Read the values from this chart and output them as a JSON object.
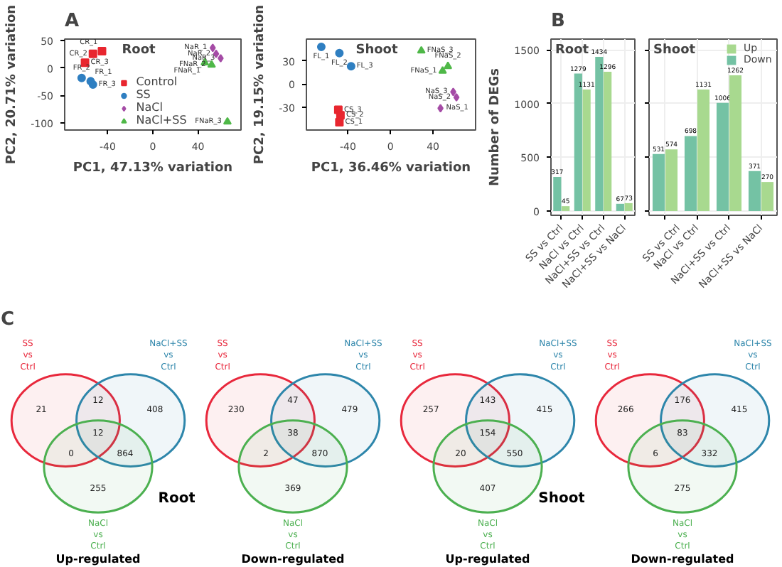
{
  "chart_data": [
    {
      "type": "scatter",
      "title": "Root",
      "xlabel": "PC1, 47.13% variation",
      "ylabel": "PC2, 20.71% variation",
      "xlim": [
        -78,
        78
      ],
      "ylim": [
        -113,
        53
      ],
      "xticks": [
        -40,
        0,
        40
      ],
      "yticks": [
        -100,
        -50,
        0,
        50
      ],
      "grid": false,
      "legend": "bottom",
      "annotations": [
        "A",
        {
          "text": "CR_1",
          "x": -45,
          "y": 31
        },
        {
          "text": "CR_2",
          "x": -53,
          "y": 26
        },
        {
          "text": "CR_3",
          "x": -60,
          "y": 10
        },
        {
          "text": "FR_1",
          "x": -55,
          "y": -24
        },
        {
          "text": "FR_2",
          "x": -63,
          "y": -18
        },
        {
          "text": "FR_3",
          "x": -53,
          "y": -30
        },
        {
          "text": "NaR_1",
          "x": 53,
          "y": 37
        },
        {
          "text": "NaR_2",
          "x": 56,
          "y": 26
        },
        {
          "text": "NaR_3",
          "x": 60,
          "y": 18
        },
        {
          "text": "FNaR_1",
          "x": 46,
          "y": 10
        },
        {
          "text": "FNaR_2",
          "x": 52,
          "y": 6
        },
        {
          "text": "FNaR_3",
          "x": 66,
          "y": -98
        }
      ],
      "series": [
        {
          "name": "Control",
          "color": "#e8262f",
          "marker": "square",
          "x": [
            -45,
            -53,
            -60
          ],
          "values": [
            31,
            26,
            10
          ]
        },
        {
          "name": "SS",
          "color": "#2f7fc1",
          "marker": "circle",
          "x": [
            -55,
            -63,
            -53
          ],
          "values": [
            -24,
            -18,
            -30
          ]
        },
        {
          "name": "NaCl",
          "color": "#a54ca6",
          "marker": "diamond",
          "x": [
            53,
            56,
            60
          ],
          "values": [
            37,
            26,
            18
          ]
        },
        {
          "name": "NaCl+SS",
          "color": "#4fb848",
          "marker": "triangle",
          "x": [
            46,
            52,
            66
          ],
          "values": [
            10,
            6,
            -98
          ]
        }
      ]
    },
    {
      "type": "scatter",
      "title": "Shoot",
      "xlabel": "PC1, 36.46% variation",
      "ylabel": "PC2, 19.15% variation",
      "xlim": [
        -79,
        80
      ],
      "ylim": [
        -59,
        58
      ],
      "xticks": [
        -40,
        0,
        40
      ],
      "yticks": [
        -30,
        0,
        30
      ],
      "grid": false,
      "annotations": [
        {
          "text": "FL_1",
          "x": -65,
          "y": 48
        },
        {
          "text": "FL_2",
          "x": -48,
          "y": 40
        },
        {
          "text": "FL_3",
          "x": -37,
          "y": 23
        },
        {
          "text": "CS_3",
          "x": -49,
          "y": -33
        },
        {
          "text": "CS_2",
          "x": -47,
          "y": -40
        },
        {
          "text": "CS_1",
          "x": -48,
          "y": -49
        },
        {
          "text": "NaS_3",
          "x": 59,
          "y": -10
        },
        {
          "text": "NaS_2",
          "x": 62,
          "y": -17
        },
        {
          "text": "NaS_1",
          "x": 47,
          "y": -31
        },
        {
          "text": "FNaS_3",
          "x": 29,
          "y": 43
        },
        {
          "text": "FNaS_2",
          "x": 54,
          "y": 23
        },
        {
          "text": "FNaS_1",
          "x": 49,
          "y": 17
        }
      ],
      "series": [
        {
          "color": "#e8262f",
          "marker": "square",
          "x": [
            -49,
            -47,
            -48
          ],
          "values": [
            -33,
            -40,
            -49
          ]
        },
        {
          "color": "#2f7fc1",
          "marker": "circle",
          "x": [
            -65,
            -48,
            -37
          ],
          "values": [
            48,
            40,
            23
          ]
        },
        {
          "color": "#a54ca6",
          "marker": "diamond",
          "x": [
            59,
            62,
            47
          ],
          "values": [
            -10,
            -17,
            -31
          ]
        },
        {
          "color": "#4fb848",
          "marker": "triangle",
          "x": [
            29,
            54,
            49
          ],
          "values": [
            43,
            23,
            17
          ]
        }
      ]
    },
    {
      "type": "bar",
      "title": "Root",
      "ylabel": "Number of DEGs",
      "ylim": [
        -40,
        1600
      ],
      "yticks": [
        0,
        500,
        1000,
        1500
      ],
      "grid": true,
      "data_labels": true,
      "annotations": [
        "B"
      ],
      "categories": [
        "SS vs Ctrl",
        "NaCl vs Ctrl",
        "NaCl+SS vs Ctrl",
        "NaCl+SS vs NaCl"
      ],
      "series": [
        {
          "color": "#74c2a4",
          "values": [
            317,
            1279,
            1434,
            67
          ]
        },
        {
          "color": "#a8d98f",
          "values": [
            45,
            1131,
            1296,
            73
          ]
        }
      ]
    },
    {
      "type": "bar",
      "title": "Shoot",
      "ylim": [
        -40,
        1600
      ],
      "yticks": [
        0,
        500,
        1000,
        1500
      ],
      "grid": true,
      "data_labels": true,
      "legend": "top right",
      "tick_labels": "x",
      "categories": [
        "SS vs Ctrl",
        "NaCl vs Ctrl",
        "NaCl+SS vs Ctrl",
        "NaCl+SS vs NaCl"
      ],
      "series": [
        {
          "name": "Down",
          "color": "#74c2a4",
          "values": [
            531,
            698,
            1006,
            371
          ]
        },
        {
          "name": "Up",
          "color": "#a8d98f",
          "values": [
            574,
            1131,
            1262,
            270
          ]
        }
      ]
    },
    {
      "type": "other",
      "title": "Root",
      "subtitle": "Up-regulated",
      "annotations": [
        "C",
        "21",
        "12",
        "408",
        "12",
        "0",
        "864",
        "255"
      ],
      "series": [
        {
          "name": "SS\nvs\nCtrl",
          "color": "#e8283c"
        },
        {
          "name": "NaCl+SS\nvs\nCtrl",
          "color": "#2e86ab"
        },
        {
          "name": "NaCl\nvs\nCtrl",
          "color": "#4cb050"
        }
      ],
      "legend": false
    },
    {
      "type": "other",
      "subtitle": "Down-regulated",
      "annotations": [
        "230",
        "47",
        "479",
        "38",
        "2",
        "870",
        "369"
      ],
      "series": [
        {
          "name": "SS\nvs\nCtrl",
          "color": "#e8283c"
        },
        {
          "name": "NaCl+SS\nvs\nCtrl",
          "color": "#2e86ab"
        },
        {
          "name": "NaCl\nvs\nCtrl",
          "color": "#4cb050"
        }
      ],
      "legend": false
    },
    {
      "type": "other",
      "title": "Shoot",
      "subtitle": "Up-regulated",
      "annotations": [
        "257",
        "143",
        "415",
        "154",
        "20",
        "550",
        "407"
      ],
      "series": [
        {
          "name": "SS\nvs\nCtrl",
          "color": "#e8283c"
        },
        {
          "name": "NaCl+SS\nvs\nCtrl",
          "color": "#2e86ab"
        },
        {
          "name": "NaCl\nvs\nCtrl",
          "color": "#4cb050"
        }
      ],
      "legend": false
    },
    {
      "type": "other",
      "subtitle": "Down-regulated",
      "annotations": [
        "266",
        "176",
        "415",
        "83",
        "6",
        "332",
        "275"
      ],
      "series": [
        {
          "name": "SS\nvs\nCtrl",
          "color": "#e8283c"
        },
        {
          "name": "NaCl+SS\nvs\nCtrl",
          "color": "#2e86ab"
        },
        {
          "name": "NaCl\nvs\nCtrl",
          "color": "#4cb050"
        }
      ],
      "legend": false
    }
  ]
}
